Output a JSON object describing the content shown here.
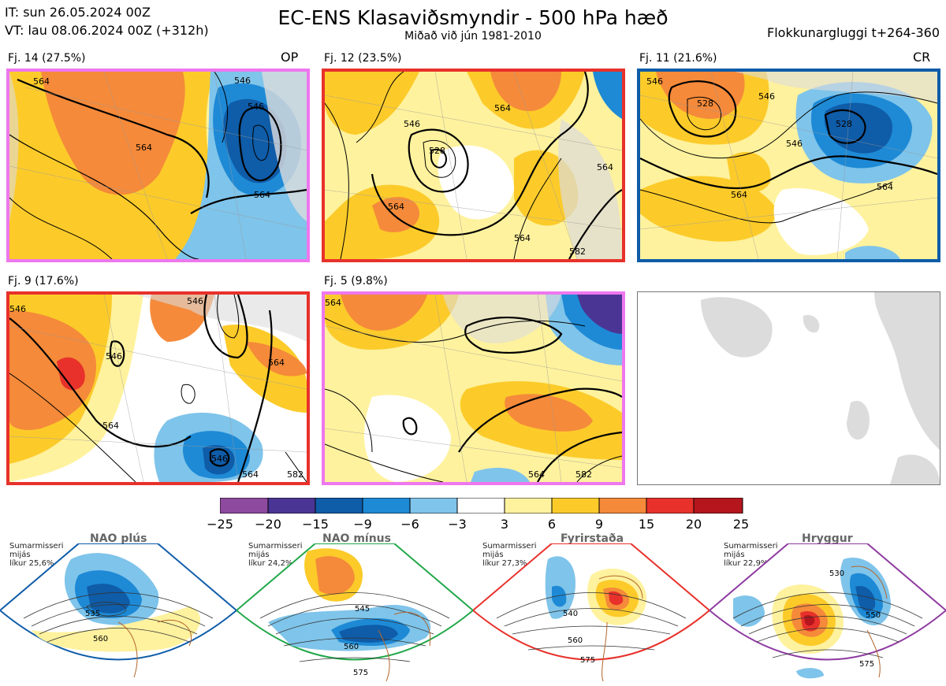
{
  "header": {
    "it": "IT: sun 26.05.2024 00Z",
    "vt": "VT: lau 08.06.2024 00Z  (+312h)",
    "title": "EC-ENS Klasaviðsmyndir - 500 hPa hæð",
    "subtitle": "Miðað við jún 1981-2010",
    "window": "Flokkunargluggi t+264-360"
  },
  "panels": [
    {
      "label": "Fj. 14 (27.5%)",
      "tag": "OP",
      "border": "#ee77ee",
      "contours": [
        "564",
        "546",
        "564",
        "564",
        "546",
        "564"
      ]
    },
    {
      "label": "Fj. 12 (23.5%)",
      "tag": "",
      "border": "#e8312b",
      "contours": [
        "546",
        "546",
        "528",
        "564",
        "546",
        "564",
        "564",
        "582"
      ]
    },
    {
      "label": "Fj. 11 (21.6%)",
      "tag": "CR",
      "border": "#0f5ca8",
      "contours": [
        "546",
        "528",
        "546",
        "546",
        "528",
        "564",
        "564"
      ]
    },
    {
      "label": "Fj. 9 (17.6%)",
      "tag": "",
      "border": "#e8312b",
      "contours": [
        "546",
        "546",
        "546",
        "564",
        "564",
        "546",
        "564",
        "582"
      ]
    },
    {
      "label": "Fj. 5 (9.8%)",
      "tag": "",
      "border": "#ee77ee",
      "contours": [
        "564",
        "564",
        "582"
      ]
    }
  ],
  "colorbar": {
    "labels": [
      "−25",
      "−20",
      "−15",
      "−9",
      "−6",
      "−3",
      "3",
      "6",
      "9",
      "15",
      "20",
      "25"
    ],
    "colors": [
      "#8e4a9e",
      "#4b3594",
      "#0f5ca8",
      "#1e8ad6",
      "#7fc4ea",
      "#ffffff",
      "#fff29e",
      "#fccb2a",
      "#f58a3a",
      "#e8312b",
      "#b5151d"
    ]
  },
  "climatology": [
    {
      "name": "NAO plús",
      "season": "Sumarmisseri",
      "stat": "mijás",
      "prob": "líkur 25,6%",
      "color": "#0f5ca8",
      "contours": [
        "535",
        "560"
      ]
    },
    {
      "name": "NAO mínus",
      "season": "Sumarmisseri",
      "stat": "mijás",
      "prob": "líkur 24,2%",
      "color": "#22a84a",
      "contours": [
        "545",
        "560",
        "575"
      ]
    },
    {
      "name": "Fyrirstaða",
      "season": "Sumarmisseri",
      "stat": "mijás",
      "prob": "líkur 27,3%",
      "color": "#e8312b",
      "contours": [
        "540",
        "560",
        "575"
      ]
    },
    {
      "name": "Hryggur",
      "season": "Sumarmisseri",
      "stat": "mijás",
      "prob": "líkur 22,9%",
      "color": "#8e3aa0",
      "contours": [
        "530",
        "550",
        "575"
      ]
    }
  ]
}
